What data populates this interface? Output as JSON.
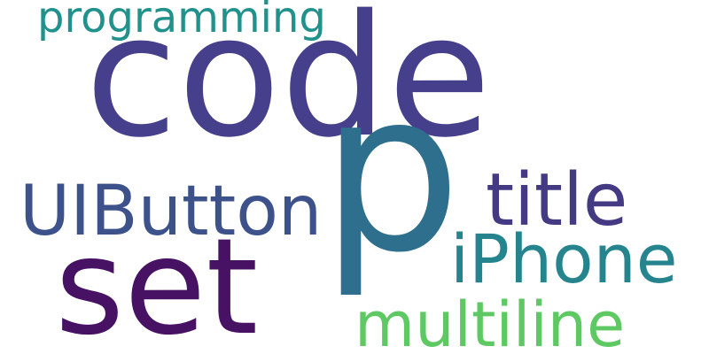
{
  "word_cloud": {
    "words": [
      {
        "text": "code",
        "color": "#46408c"
      },
      {
        "text": "p",
        "color": "#2e6f8e"
      },
      {
        "text": "set",
        "color": "#471164"
      },
      {
        "text": "UIButton",
        "color": "#3d528b"
      },
      {
        "text": "title",
        "color": "#443983"
      },
      {
        "text": "iPhone",
        "color": "#25848e"
      },
      {
        "text": "multiline",
        "color": "#5ec962"
      },
      {
        "text": "programming",
        "color": "#21918c"
      }
    ]
  }
}
